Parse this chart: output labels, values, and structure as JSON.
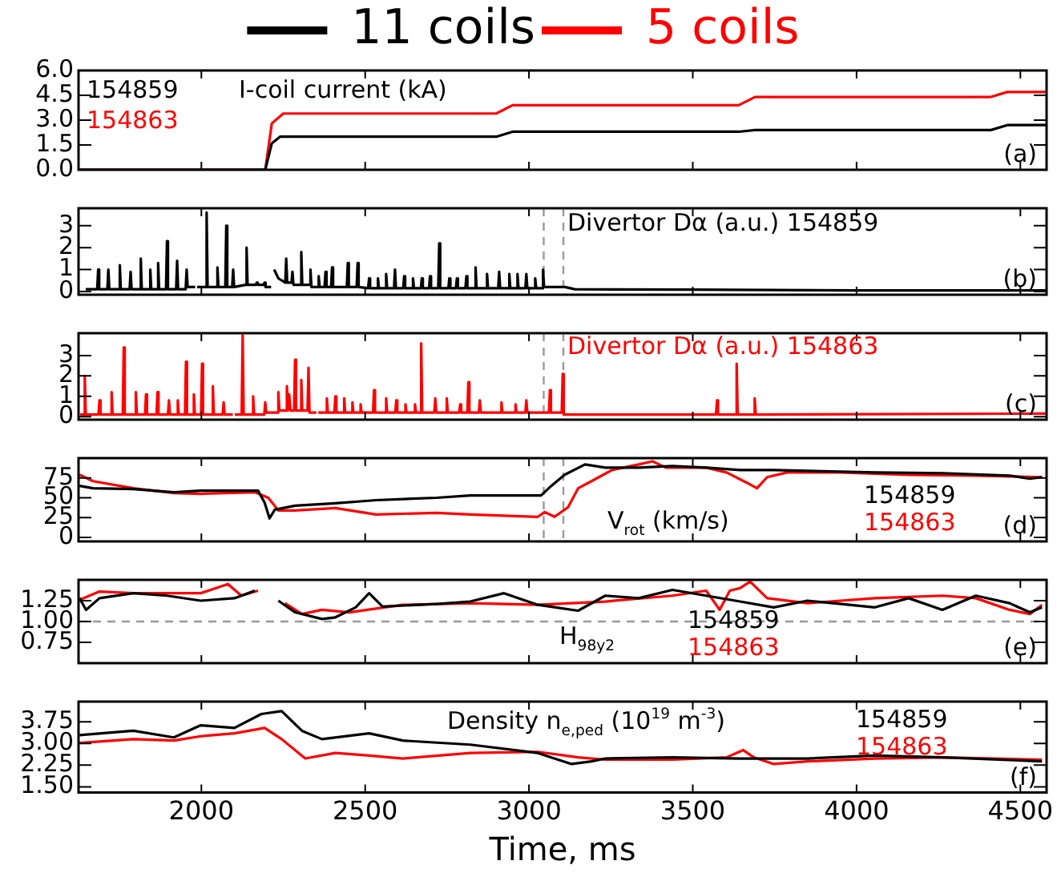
{
  "chart_data": [
    {
      "type": "line",
      "title": "I-coil current (kA)",
      "legend": "top",
      "tick_labels": "y",
      "xlim": [
        1625,
        4580
      ],
      "xticks": [
        2000,
        2500,
        3000,
        3500,
        4000,
        4500
      ],
      "ylim": [
        0,
        6
      ],
      "yticks": [
        {
          "value": 0,
          "label": "0.0"
        },
        {
          "value": 1.5,
          "label": "1.5"
        },
        {
          "value": 3,
          "label": "3.0"
        },
        {
          "value": 4.5,
          "label": "4.5"
        },
        {
          "value": 6,
          "label": "6.0"
        }
      ],
      "annotations": [
        "154859",
        "154863",
        "(a)"
      ],
      "series": [
        {
          "name": "11 coils",
          "color": "#000000",
          "x": [
            1625,
            2195,
            2215,
            2240,
            2900,
            2950,
            3640,
            3690,
            4410,
            4460,
            4580
          ],
          "values": [
            0,
            0,
            1.6,
            2.0,
            2.0,
            2.3,
            2.3,
            2.4,
            2.4,
            2.7,
            2.7
          ]
        },
        {
          "name": "5 coils",
          "color": "#ff0000",
          "x": [
            1625,
            2195,
            2215,
            2250,
            2900,
            2950,
            3640,
            3690,
            4410,
            4460,
            4580
          ],
          "values": [
            0,
            0,
            2.8,
            3.4,
            3.4,
            3.9,
            3.9,
            4.4,
            4.4,
            4.7,
            4.7
          ]
        }
      ]
    },
    {
      "type": "line",
      "title": "Divertor Dα (a.u.) 154859",
      "tick_labels": "y",
      "xlim": [
        1625,
        4580
      ],
      "xticks": [
        2000,
        2500,
        3000,
        3500,
        4000,
        4500
      ],
      "ylim": [
        -0.15,
        3.8
      ],
      "yticks": [
        0,
        1,
        2,
        3
      ],
      "annotations": [
        "(b)"
      ],
      "ref_lines": [
        {
          "axis": "x",
          "value": 3045,
          "color": "#999999",
          "line_style": "dashed"
        },
        {
          "axis": "x",
          "value": 3105,
          "color": "#999999",
          "line_style": "dashed"
        }
      ],
      "series": [
        {
          "color": "#000000",
          "x": [
            1647,
            1682,
            1685,
            1688,
            1713,
            1716,
            1719,
            1748,
            1751,
            1754,
            1781,
            1784,
            1787,
            1812,
            1815,
            1818,
            1841,
            1844,
            1847,
            1865,
            1868,
            1871,
            1892,
            1895,
            1898,
            1923,
            1926,
            1929,
            1952,
            1955,
            1958,
            1981,
            1984,
            1987,
            2013,
            2016,
            2019,
            2046,
            2049,
            2052,
            2073,
            2076,
            2079,
            2094,
            2097,
            2100,
            2135,
            2138,
            2141,
            2166,
            2169,
            2172,
            2190,
            2193,
            2196,
            2213,
            2216,
            2222,
            2235,
            2256,
            2259,
            2262,
            2275,
            2278,
            2281,
            2302,
            2305,
            2308,
            2330,
            2333,
            2336,
            2355,
            2358,
            2361,
            2376,
            2379,
            2382,
            2396,
            2399,
            2402,
            2444,
            2447,
            2450,
            2474,
            2477,
            2480,
            2509,
            2512,
            2515,
            2536,
            2539,
            2542,
            2561,
            2564,
            2567,
            2588,
            2591,
            2594,
            2616,
            2619,
            2622,
            2643,
            2646,
            2649,
            2670,
            2673,
            2676,
            2695,
            2698,
            2701,
            2723,
            2726,
            2729,
            2754,
            2757,
            2760,
            2777,
            2780,
            2783,
            2806,
            2809,
            2812,
            2834,
            2837,
            2840,
            2869,
            2872,
            2875,
            2906,
            2909,
            2912,
            2937,
            2940,
            2943,
            2962,
            2965,
            2968,
            2989,
            2992,
            2995,
            3016,
            3019,
            3022,
            3040,
            3043,
            3046,
            3110,
            3140,
            3500,
            4000,
            4580
          ],
          "values": [
            0.1,
            0.1,
            1.0,
            0.1,
            0.1,
            1.0,
            0.1,
            0.1,
            1.2,
            0.1,
            0.1,
            0.9,
            0.1,
            0.1,
            1.5,
            0.1,
            0.1,
            1.0,
            0.1,
            0.1,
            1.3,
            0.1,
            0.1,
            2.3,
            0.1,
            0.1,
            1.4,
            0.1,
            0.1,
            1.0,
            0.2,
            0.2,
            null,
            0.2,
            0.2,
            3.6,
            0.2,
            0.2,
            1.1,
            0.2,
            0.2,
            3.0,
            0.2,
            0.2,
            1.0,
            0.2,
            0.3,
            2.0,
            0.3,
            0.3,
            0.4,
            0.3,
            0.3,
            0.4,
            0.2,
            0.2,
            null,
            1.0,
            0.6,
            0.4,
            1.5,
            0.4,
            0.4,
            0.9,
            0.3,
            0.3,
            1.8,
            0.3,
            0.3,
            1.0,
            0.2,
            0.2,
            0.7,
            0.2,
            0.2,
            0.9,
            0.2,
            0.2,
            1.1,
            0.2,
            0.2,
            1.3,
            0.2,
            0.2,
            1.3,
            0.2,
            0.15,
            0.6,
            0.15,
            0.15,
            0.6,
            0.15,
            0.15,
            0.8,
            0.15,
            0.15,
            1.0,
            0.15,
            0.15,
            0.7,
            0.15,
            0.15,
            0.6,
            0.15,
            0.15,
            0.6,
            0.15,
            0.15,
            0.7,
            0.15,
            0.15,
            2.2,
            0.15,
            0.15,
            0.6,
            0.15,
            0.15,
            0.6,
            0.15,
            0.15,
            0.7,
            0.15,
            0.15,
            1.1,
            0.15,
            0.15,
            0.8,
            0.15,
            0.15,
            0.9,
            0.15,
            0.15,
            0.8,
            0.15,
            0.15,
            0.8,
            0.15,
            0.15,
            0.8,
            0.15,
            0.15,
            0.6,
            0.15,
            0.15,
            1.0,
            0.2,
            0.2,
            0.1,
            0.08,
            0.05,
            0.05
          ]
        }
      ]
    },
    {
      "type": "line",
      "title": "Divertor Dα (a.u.) 154863",
      "tick_labels": "y",
      "xlim": [
        1625,
        4580
      ],
      "xticks": [
        2000,
        2500,
        3000,
        3500,
        4000,
        4500
      ],
      "ylim": [
        -0.15,
        4.1
      ],
      "yticks": [
        0,
        1,
        2,
        3
      ],
      "annotations": [
        "(c)"
      ],
      "ref_lines": [
        {
          "axis": "x",
          "value": 3045,
          "color": "#999999",
          "line_style": "dashed"
        },
        {
          "axis": "x",
          "value": 3105,
          "color": "#999999",
          "line_style": "dashed"
        }
      ],
      "series": [
        {
          "color": "#ff0000",
          "x": [
            1630,
            1641,
            1644,
            1647,
            1686,
            1689,
            1692,
            1723,
            1726,
            1729,
            1760,
            1763,
            1766,
            1797,
            1800,
            1803,
            1828,
            1831,
            1834,
            1863,
            1866,
            1869,
            1898,
            1901,
            1904,
            1925,
            1928,
            1931,
            1950,
            1953,
            1956,
            1974,
            1977,
            1980,
            1999,
            2002,
            2005,
            2032,
            2035,
            2038,
            2065,
            2068,
            2071,
            2096,
            2099,
            2102,
            2123,
            2126,
            2129,
            2155,
            2158,
            2161,
            2192,
            2195,
            2198,
            2232,
            2235,
            2238,
            2258,
            2261,
            2264,
            2268,
            2272,
            2283,
            2286,
            2289,
            2302,
            2305,
            2308,
            2324,
            2327,
            2330,
            2351,
            2354,
            2357,
            2380,
            2383,
            2386,
            2406,
            2409,
            2412,
            2433,
            2436,
            2439,
            2458,
            2461,
            2464,
            2483,
            2486,
            2489,
            2524,
            2527,
            2530,
            2561,
            2564,
            2567,
            2592,
            2595,
            2598,
            2620,
            2623,
            2626,
            2649,
            2652,
            2655,
            2668,
            2671,
            2674,
            2711,
            2714,
            2717,
            2746,
            2749,
            2752,
            2787,
            2790,
            2793,
            2812,
            2815,
            2818,
            2847,
            2850,
            2853,
            2913,
            2916,
            2919,
            2956,
            2959,
            2962,
            2989,
            2992,
            2995,
            3061,
            3064,
            3067,
            3100,
            3103,
            3106,
            3571,
            3574,
            3577,
            3631,
            3634,
            3637,
            3686,
            3689,
            3692,
            4580
          ],
          "values": [
            0.1,
            0.1,
            2.0,
            0.1,
            0.1,
            0.8,
            0.1,
            0.1,
            1.2,
            0.1,
            0.1,
            3.4,
            0.1,
            0.1,
            1.2,
            0.1,
            0.1,
            1.1,
            0.1,
            0.1,
            1.2,
            0.1,
            0.1,
            0.8,
            0.1,
            0.1,
            0.8,
            0.1,
            0.1,
            2.7,
            0.1,
            0.1,
            1.1,
            0.1,
            0.1,
            2.6,
            0.1,
            0.1,
            1.5,
            0.1,
            0.1,
            0.7,
            0.1,
            0.1,
            null,
            0.1,
            0.1,
            4.0,
            0.1,
            0.1,
            1.0,
            0.1,
            0.1,
            0.7,
            0.2,
            0.2,
            1.2,
            0.3,
            0.3,
            1.5,
            0.3,
            1.1,
            0.3,
            0.3,
            2.8,
            0.3,
            0.3,
            1.8,
            0.3,
            0.3,
            2.4,
            0.2,
            0.2,
            null,
            0.2,
            0.2,
            0.9,
            0.2,
            0.2,
            1.0,
            0.2,
            0.2,
            0.9,
            0.2,
            0.2,
            0.7,
            0.2,
            0.2,
            0.6,
            0.2,
            0.2,
            1.3,
            0.2,
            0.2,
            0.9,
            0.2,
            0.2,
            0.8,
            0.2,
            0.2,
            0.6,
            0.2,
            0.2,
            0.6,
            0.2,
            0.2,
            3.6,
            0.2,
            0.2,
            0.9,
            0.2,
            0.2,
            0.9,
            0.2,
            0.2,
            0.6,
            0.2,
            0.2,
            1.7,
            0.2,
            0.2,
            0.8,
            0.2,
            0.2,
            0.7,
            0.2,
            0.2,
            0.6,
            0.2,
            0.2,
            0.8,
            0.2,
            0.2,
            1.3,
            0.2,
            0.2,
            2.1,
            0.1,
            0.1,
            0.8,
            0.1,
            0.1,
            2.6,
            0.1,
            0.1,
            0.9,
            0.1,
            0.15
          ]
        }
      ]
    },
    {
      "type": "line",
      "title": "V$_{rot}$ (km/s)",
      "tick_labels": "y",
      "xlim": [
        1625,
        4580
      ],
      "xticks": [
        2000,
        2500,
        3000,
        3500,
        4000,
        4500
      ],
      "ylim": [
        -5,
        100
      ],
      "yticks": [
        0,
        25,
        50,
        75
      ],
      "annotations": [
        "(d)"
      ],
      "ref_lines": [
        {
          "axis": "x",
          "value": 3045,
          "color": "#999999",
          "line_style": "dashed"
        },
        {
          "axis": "x",
          "value": 3105,
          "color": "#999999",
          "line_style": "dashed"
        }
      ],
      "series": [
        {
          "name": "154859",
          "color": "#000000",
          "x": [
            1628,
            1669,
            1792,
            1916,
            1998,
            2173,
            2193,
            2208,
            2224,
            2286,
            2409,
            2533,
            2718,
            2821,
            3037,
            3068,
            3109,
            3171,
            3233,
            3335,
            3438,
            3541,
            3644,
            3747,
            3850,
            4056,
            4262,
            4467,
            4529,
            4566
          ],
          "values": [
            65,
            62,
            61,
            57,
            59,
            59,
            44,
            24,
            35,
            40,
            43,
            47,
            50,
            53,
            53,
            65,
            79,
            92,
            88,
            88,
            90,
            88,
            85,
            85,
            84,
            82,
            81,
            78,
            74,
            76
          ]
        },
        {
          "name": "154863",
          "color": "#ff0000",
          "x": [
            1628,
            1669,
            1792,
            1916,
            1998,
            2163,
            2204,
            2235,
            2286,
            2409,
            2533,
            2718,
            2821,
            3027,
            3048,
            3078,
            3119,
            3150,
            3191,
            3253,
            3335,
            3377,
            3418,
            3541,
            3603,
            3665,
            3696,
            3727,
            3788,
            3953,
            4159,
            4364,
            4566
          ],
          "values": [
            79,
            71,
            62,
            56,
            55,
            57,
            50,
            34,
            34,
            37,
            29,
            31,
            29,
            26,
            32,
            26,
            38,
            62,
            71,
            85,
            92,
            96,
            88,
            88,
            82,
            69,
            62,
            76,
            82,
            82,
            79,
            78,
            76
          ]
        }
      ]
    },
    {
      "type": "line",
      "title": "H$_{98y2}$",
      "tick_labels": "y",
      "xlim": [
        1625,
        4580
      ],
      "xticks": [
        2000,
        2500,
        3000,
        3500,
        4000,
        4500
      ],
      "ylim": [
        0.5,
        1.5
      ],
      "yticks": [
        {
          "value": 0.75,
          "label": "0.75"
        },
        {
          "value": 1,
          "label": "1.00"
        },
        {
          "value": 1.25,
          "label": "1.25"
        }
      ],
      "annotations": [
        "(e)"
      ],
      "ref_lines": [
        {
          "axis": "y",
          "value": 1,
          "color": "#999999",
          "line_style": "dashed"
        }
      ],
      "series": [
        {
          "name": "154859",
          "color": "#000000",
          "x": [
            1628,
            1648,
            1689,
            1792,
            1895,
            1998,
            2101,
            2163,
            2193,
            2214,
            2235,
            2286,
            2368,
            2409,
            2471,
            2512,
            2553,
            2718,
            2821,
            2924,
            3027,
            3150,
            3233,
            3335,
            3438,
            3541,
            3644,
            3747,
            3850,
            3953,
            4056,
            4159,
            4262,
            4364,
            4467,
            4529,
            4566
          ],
          "values": [
            1.28,
            1.14,
            1.28,
            1.34,
            1.31,
            1.25,
            1.28,
            1.37,
            null,
            null,
            1.25,
            1.11,
            1.03,
            1.05,
            1.17,
            1.34,
            1.18,
            1.21,
            1.24,
            1.34,
            1.2,
            1.13,
            1.31,
            1.28,
            1.38,
            1.31,
            1.24,
            1.17,
            1.25,
            1.21,
            1.17,
            1.28,
            1.14,
            1.31,
            1.22,
            1.11,
            1.17
          ]
        },
        {
          "name": "154863",
          "color": "#ff0000",
          "x": [
            1628,
            1689,
            1792,
            1895,
            1998,
            2081,
            2122,
            2173,
            2204,
            2220,
            2255,
            2307,
            2368,
            2451,
            2615,
            2821,
            3027,
            3233,
            3438,
            3541,
            3582,
            3613,
            3644,
            3675,
            3727,
            3850,
            4056,
            4262,
            4364,
            4467,
            4529,
            4566
          ],
          "values": [
            1.26,
            1.36,
            1.34,
            1.34,
            1.34,
            1.45,
            1.31,
            1.37,
            null,
            null,
            1.22,
            1.09,
            1.14,
            1.11,
            1.2,
            1.22,
            1.2,
            1.24,
            1.31,
            1.37,
            1.14,
            1.37,
            1.4,
            1.48,
            1.28,
            1.22,
            1.28,
            1.31,
            1.28,
            1.14,
            1.09,
            1.2
          ]
        }
      ]
    },
    {
      "type": "line",
      "title": "Density n$_{e,ped}$ (10$^{19}$ m$^{-3}$)",
      "xlabel": "Time, ms",
      "xlim": [
        1625,
        4580
      ],
      "xticks": [
        2000,
        2500,
        3000,
        3500,
        4000,
        4500
      ],
      "ylim": [
        1.3,
        4.45
      ],
      "yticks": [
        {
          "value": 1.5,
          "label": "1.50"
        },
        {
          "value": 2.25,
          "label": "2.25"
        },
        {
          "value": 3,
          "label": "3.00"
        },
        {
          "value": 3.75,
          "label": "3.75"
        }
      ],
      "annotations": [
        "(f)"
      ],
      "series": [
        {
          "name": "154859",
          "color": "#000000",
          "x": [
            1628,
            1792,
            1916,
            1998,
            2101,
            2183,
            2245,
            2307,
            2368,
            2512,
            2615,
            2821,
            3027,
            3130,
            3191,
            3233,
            3438,
            3644,
            3850,
            4056,
            4262,
            4566
          ],
          "values": [
            3.29,
            3.44,
            3.21,
            3.63,
            3.54,
            4.02,
            4.12,
            3.44,
            3.15,
            3.35,
            3.1,
            2.96,
            2.67,
            2.29,
            2.38,
            2.48,
            2.52,
            2.48,
            2.48,
            2.58,
            2.52,
            2.38
          ]
        },
        {
          "name": "154863",
          "color": "#ff0000",
          "x": [
            1628,
            1792,
            1916,
            1998,
            2101,
            2193,
            2245,
            2317,
            2409,
            2512,
            2615,
            2821,
            3027,
            3150,
            3233,
            3438,
            3603,
            3654,
            3686,
            3747,
            3850,
            4056,
            4262,
            4566
          ],
          "values": [
            3.02,
            3.15,
            3.1,
            3.25,
            3.35,
            3.54,
            3.15,
            2.48,
            2.67,
            2.58,
            2.48,
            2.67,
            2.71,
            2.52,
            2.44,
            2.44,
            2.52,
            2.77,
            2.52,
            2.29,
            2.38,
            2.48,
            2.52,
            2.44
          ]
        }
      ]
    }
  ]
}
